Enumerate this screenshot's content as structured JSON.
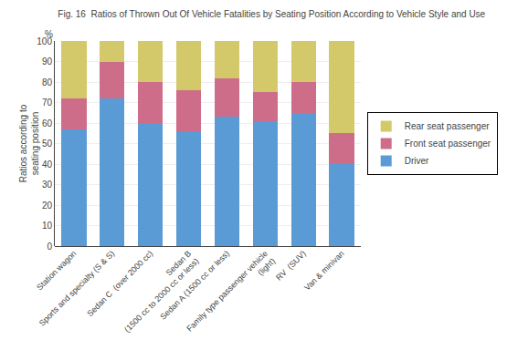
{
  "chart_data": {
    "type": "bar",
    "title": "Fig. 16  Ratios of Thrown Out Of Vehicle Fatalities by Seating Position According to Vehicle Style and Use",
    "y_label": "Ratios according to\nseating position",
    "categories": [
      "Station wagon",
      "Sports and specialty (S & S)",
      "Sedan C  (over 2000 cc)",
      "Sedan B\n(1500 cc to 2000 cc or less)",
      "Sedan A (1500 cc or less)",
      "Family type passenger vehicle\n(light)",
      "RV  (SUV)",
      "Van & minivan"
    ],
    "series": [
      {
        "name": "Driver",
        "color": "#5B9BD5",
        "values": [
          57,
          72,
          60,
          56,
          63,
          61,
          65,
          40
        ]
      },
      {
        "name": "Front seat passenger",
        "color": "#CD6D8A",
        "values": [
          15,
          18,
          20,
          20,
          19,
          14,
          15,
          15
        ]
      },
      {
        "name": "Rear seat passenger",
        "color": "#D4C96A",
        "values": [
          28,
          10,
          20,
          24,
          18,
          25,
          20,
          45
        ]
      }
    ],
    "stacked": true,
    "ylim": [
      0,
      100
    ],
    "yticks": [
      0,
      10,
      20,
      30,
      40,
      50,
      60,
      70,
      80,
      90,
      100
    ],
    "grid": true,
    "legend": "right",
    "annotations": [
      {
        "text": "%"
      }
    ]
  }
}
